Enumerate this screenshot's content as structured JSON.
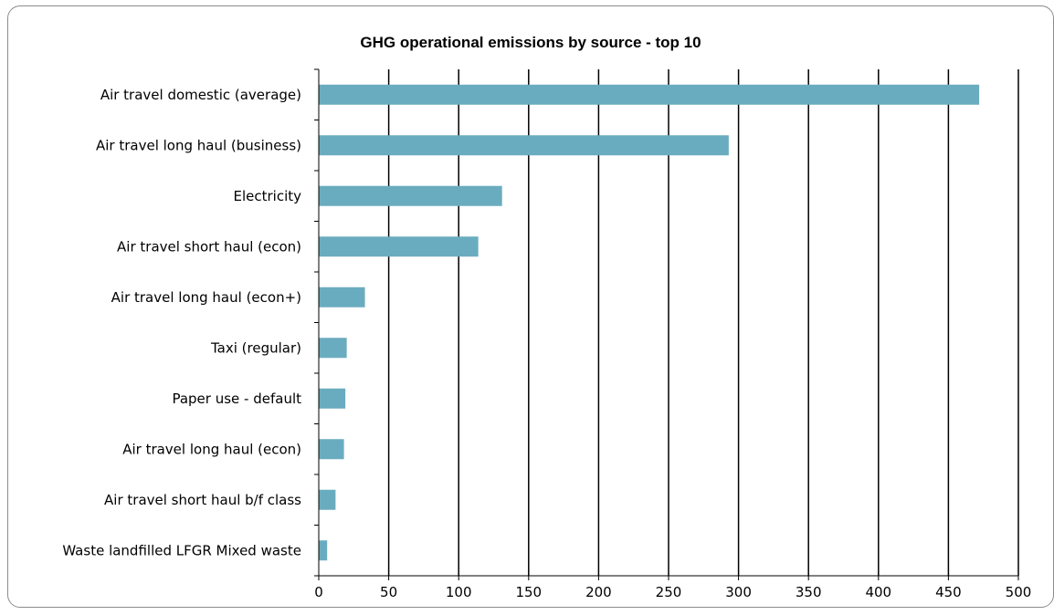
{
  "chart_data": {
    "type": "bar",
    "orientation": "horizontal",
    "title": "GHG operational emissions by source - top 10",
    "categories": [
      "Air travel domestic (average)",
      "Air travel long haul (business)",
      "Electricity",
      "Air travel short haul (econ)",
      "Air travel long haul (econ+)",
      "Taxi (regular)",
      "Paper use - default",
      "Air travel long haul (econ)",
      "Air travel short haul b/f class",
      "Waste landfilled LFGR Mixed waste"
    ],
    "values": [
      472,
      293,
      131,
      114,
      33,
      20,
      19,
      18,
      12,
      6
    ],
    "x_ticks": [
      "0",
      "50",
      "100",
      "150",
      "200",
      "250",
      "300",
      "350",
      "400",
      "450",
      "500"
    ],
    "xlim": [
      0,
      500
    ],
    "grid": "vertical",
    "legend": "none",
    "bar_color": "#6aacbf"
  }
}
